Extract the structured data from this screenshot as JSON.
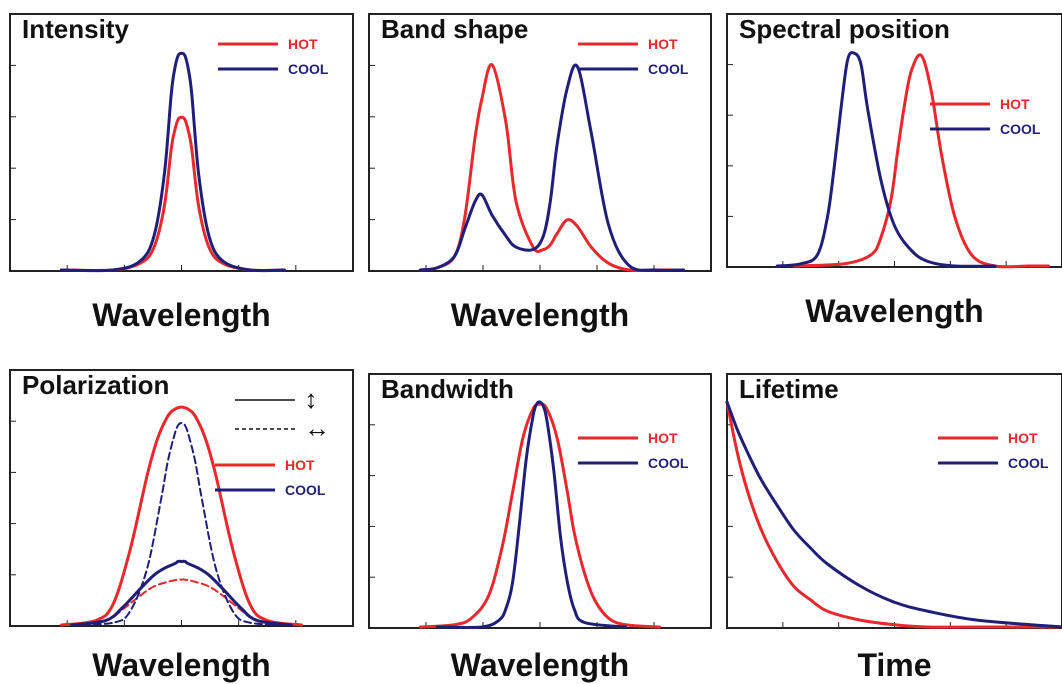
{
  "colors": {
    "hot": "#e8282b",
    "cool": "#1f1f7a",
    "axis": "#222222"
  },
  "chart_data": [
    {
      "type": "line",
      "title": "Intensity",
      "xlabel": "Wavelength",
      "ylabel": "",
      "xlim": [
        0,
        100
      ],
      "ylim": [
        0,
        100
      ],
      "legend_position": "top-right",
      "series": [
        {
          "name": "HOT",
          "color": "#e8282b",
          "x": [
            15,
            30,
            38,
            42,
            45,
            47,
            48,
            49,
            50,
            51,
            52,
            53,
            55,
            58,
            62,
            70,
            80
          ],
          "y": [
            0,
            0,
            3,
            10,
            28,
            53,
            61,
            66,
            67,
            66,
            61,
            53,
            28,
            10,
            3,
            0,
            0
          ]
        },
        {
          "name": "COOL",
          "color": "#1f1f7a",
          "x": [
            15,
            30,
            38,
            42,
            45,
            47,
            48,
            49,
            50,
            51,
            52,
            53,
            55,
            58,
            62,
            70,
            80
          ],
          "y": [
            0,
            0,
            4,
            15,
            42,
            77,
            88,
            94,
            95,
            94,
            88,
            77,
            42,
            15,
            4,
            0,
            0
          ]
        }
      ]
    },
    {
      "type": "line",
      "title": "Band shape",
      "xlabel": "Wavelength",
      "ylabel": "",
      "xlim": [
        0,
        100
      ],
      "ylim": [
        0,
        100
      ],
      "legend_position": "top-right",
      "series": [
        {
          "name": "HOT",
          "color": "#e8282b",
          "x": [
            15,
            20,
            25,
            28,
            31,
            33,
            36,
            40,
            43,
            48,
            51,
            53,
            55,
            58,
            61,
            65,
            70,
            76,
            84,
            92
          ],
          "y": [
            0,
            1,
            6,
            23,
            58,
            75,
            90,
            65,
            30,
            10,
            9,
            11,
            16,
            22,
            19,
            10,
            3,
            0,
            0,
            0
          ]
        },
        {
          "name": "COOL",
          "color": "#1f1f7a",
          "x": [
            15,
            20,
            25,
            28,
            31,
            33,
            36,
            40,
            43,
            48,
            51,
            53,
            55,
            58,
            61,
            65,
            70,
            76,
            84,
            92
          ],
          "y": [
            0,
            1,
            6,
            18,
            30,
            33,
            24,
            15,
            10,
            9,
            15,
            30,
            55,
            80,
            89,
            60,
            20,
            2,
            0,
            0
          ]
        }
      ]
    },
    {
      "type": "line",
      "title": "Spectral position",
      "xlabel": "Wavelength",
      "ylabel": "",
      "xlim": [
        0,
        100
      ],
      "ylim": [
        0,
        100
      ],
      "legend_position": "middle-right",
      "series": [
        {
          "name": "HOT",
          "color": "#e8282b",
          "x": [
            20,
            35,
            43,
            46,
            49,
            51,
            53,
            55,
            58,
            61,
            64,
            68,
            73,
            80,
            90,
            96
          ],
          "y": [
            0,
            1,
            5,
            13,
            30,
            52,
            72,
            87,
            94,
            78,
            50,
            22,
            5,
            0,
            0,
            0
          ]
        },
        {
          "name": "COOL",
          "color": "#1f1f7a",
          "x": [
            15,
            22,
            27,
            30,
            32,
            34,
            36,
            38,
            40,
            42,
            46,
            50,
            55,
            60,
            68,
            80
          ],
          "y": [
            0,
            1,
            5,
            22,
            44,
            70,
            92,
            95,
            90,
            70,
            38,
            18,
            7,
            2,
            0,
            0
          ]
        }
      ]
    },
    {
      "type": "line",
      "title": "Polarization",
      "xlabel": "Wavelength",
      "ylabel": "",
      "xlim": [
        0,
        100
      ],
      "ylim": [
        0,
        100
      ],
      "legend_position": "top-right",
      "series": [
        {
          "name": "HOT",
          "color": "#e8282b",
          "dash": "solid",
          "x": [
            15,
            25,
            30,
            35,
            40,
            43,
            46,
            48,
            50,
            52,
            54,
            57,
            60,
            65,
            70,
            75,
            85
          ],
          "y": [
            0,
            2,
            9,
            33,
            66,
            82,
            92,
            95,
            96,
            95,
            92,
            82,
            66,
            33,
            9,
            2,
            0
          ]
        },
        {
          "name": "HOT",
          "color": "#e8282b",
          "dash": "dashed",
          "x": [
            18,
            28,
            33,
            38,
            42,
            46,
            49,
            50,
            51,
            54,
            58,
            62,
            67,
            72,
            82
          ],
          "y": [
            0,
            2,
            7,
            13,
            17,
            19,
            20,
            20,
            20,
            19,
            17,
            13,
            7,
            2,
            0
          ]
        },
        {
          "name": "COOL",
          "color": "#1f1f7a",
          "dash": "solid",
          "x": [
            18,
            28,
            33,
            38,
            42,
            45,
            48,
            49,
            50,
            51,
            52,
            55,
            58,
            62,
            67,
            72,
            82
          ],
          "y": [
            0,
            2,
            8,
            16,
            22,
            25,
            27,
            28,
            28,
            28,
            27,
            25,
            22,
            16,
            8,
            2,
            0
          ]
        },
        {
          "name": "COOL",
          "color": "#1f1f7a",
          "dash": "dashed",
          "x": [
            18,
            30,
            35,
            40,
            44,
            46,
            48,
            49,
            50,
            51,
            52,
            54,
            56,
            60,
            65,
            70,
            82
          ],
          "y": [
            0,
            1,
            6,
            25,
            55,
            72,
            84,
            88,
            89,
            88,
            84,
            72,
            55,
            25,
            6,
            1,
            0
          ]
        }
      ],
      "polarization_legend": {
        "solid": "↕",
        "dashed": "↔"
      }
    },
    {
      "type": "line",
      "title": "Bandwidth",
      "xlabel": "Wavelength",
      "ylabel": "",
      "xlim": [
        0,
        100
      ],
      "ylim": [
        0,
        100
      ],
      "legend_position": "top-right",
      "series": [
        {
          "name": "HOT",
          "color": "#e8282b",
          "x": [
            15,
            25,
            30,
            35,
            39,
            42,
            45,
            48,
            50,
            52,
            55,
            58,
            60,
            63,
            66,
            70,
            75,
            85
          ],
          "y": [
            0,
            1,
            4,
            14,
            36,
            60,
            84,
            97,
            99,
            97,
            84,
            60,
            42,
            24,
            12,
            4,
            1,
            0
          ]
        },
        {
          "name": "COOL",
          "color": "#1f1f7a",
          "x": [
            20,
            33,
            38,
            40,
            42,
            44,
            46,
            48,
            49,
            50,
            51,
            52,
            54,
            56,
            58,
            60,
            63,
            75
          ],
          "y": [
            0,
            0,
            3,
            8,
            20,
            46,
            75,
            94,
            99,
            100,
            98,
            92,
            70,
            40,
            20,
            8,
            2,
            0
          ]
        }
      ]
    },
    {
      "type": "line",
      "title": "Lifetime",
      "xlabel": "Time",
      "ylabel": "",
      "xlim": [
        0,
        100
      ],
      "ylim": [
        0,
        100
      ],
      "legend_position": "top-right",
      "series": [
        {
          "name": "HOT",
          "color": "#e8282b",
          "x": [
            0,
            3,
            6,
            10,
            15,
            20,
            25,
            30,
            40,
            50,
            60,
            75,
            100
          ],
          "y": [
            100,
            78,
            61,
            44,
            29,
            18,
            12,
            7,
            3,
            1,
            0,
            0,
            0
          ]
        },
        {
          "name": "COOL",
          "color": "#1f1f7a",
          "x": [
            0,
            3,
            6,
            10,
            15,
            20,
            25,
            30,
            40,
            50,
            60,
            75,
            100
          ],
          "y": [
            100,
            88,
            78,
            66,
            54,
            43,
            35,
            28,
            18,
            11,
            7,
            3,
            0
          ]
        }
      ]
    }
  ]
}
